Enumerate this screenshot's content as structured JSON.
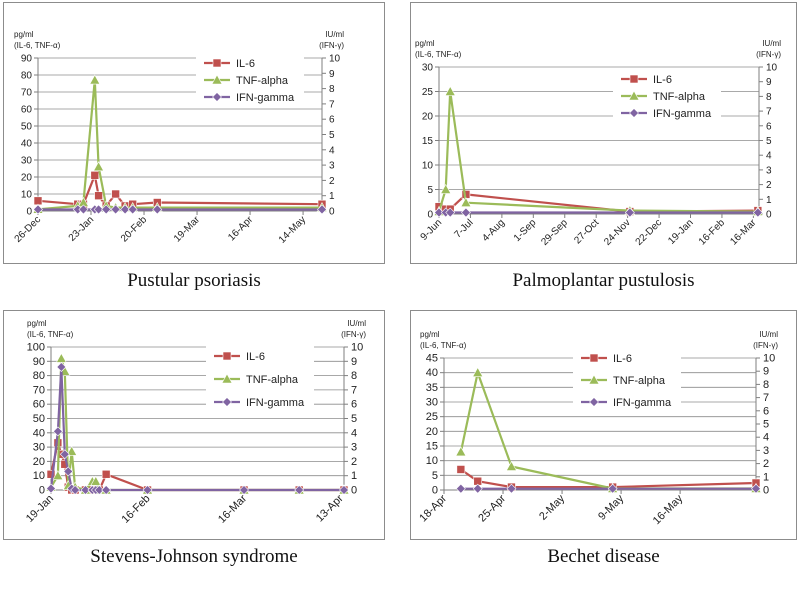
{
  "colors": {
    "IL-6": "#c0504d",
    "TNF-alpha": "#9bbb59",
    "IFN-gamma": "#8064a2",
    "axis": "#7f7f7f",
    "grid": "#8c8c8c"
  },
  "chart_data": [
    {
      "type": "line",
      "caption": "Pustular psoriasis",
      "left_unit": "pg/ml",
      "left_subunit": "(IL-6, TNF-α)",
      "right_unit": "IU/ml",
      "right_subunit": "(IFN-γ)",
      "ylim": [
        0,
        90
      ],
      "y_ticks": [
        0,
        10,
        20,
        30,
        40,
        50,
        60,
        70,
        80,
        90
      ],
      "y2lim": [
        0,
        10
      ],
      "y2_ticks": [
        0,
        1,
        2,
        3,
        4,
        5,
        6,
        7,
        8,
        9,
        10
      ],
      "xlim": [
        0,
        150
      ],
      "x_ticks": [
        {
          "x": 0,
          "label": "26-Dec"
        },
        {
          "x": 28,
          "label": "23-Jan"
        },
        {
          "x": 56,
          "label": "20-Feb"
        },
        {
          "x": 84,
          "label": "19-Mar"
        },
        {
          "x": 112,
          "label": "16-Apr"
        },
        {
          "x": 140,
          "label": "14-May"
        }
      ],
      "series": [
        {
          "name": "IL-6",
          "axis": "left",
          "marker": "square",
          "x": [
            0,
            21,
            24,
            30,
            32,
            36,
            41,
            46,
            50,
            63,
            150
          ],
          "y": [
            6,
            4,
            4,
            21,
            9,
            3,
            10,
            3,
            4,
            5,
            4
          ]
        },
        {
          "name": "TNF-alpha",
          "axis": "left",
          "marker": "triangle",
          "x": [
            0,
            21,
            24,
            30,
            32,
            36,
            41,
            46,
            50,
            63,
            150
          ],
          "y": [
            1,
            3,
            5,
            77,
            26,
            3,
            2,
            2,
            2,
            2,
            2
          ]
        },
        {
          "name": "IFN-gamma",
          "axis": "right",
          "marker": "diamond",
          "x": [
            0,
            21,
            24,
            30,
            32,
            36,
            41,
            46,
            50,
            63,
            150
          ],
          "y": [
            0.1,
            0.1,
            0.1,
            0.1,
            0.1,
            0.1,
            0.1,
            0.1,
            0.1,
            0.1,
            0.1
          ]
        }
      ]
    },
    {
      "type": "line",
      "caption": "Palmoplantar pustulosis",
      "left_unit": "pg/ml",
      "left_subunit": "(IL-6, TNF-α)",
      "right_unit": "IU/ml",
      "right_subunit": "(IFN-γ)",
      "ylim": [
        0,
        30
      ],
      "y_ticks": [
        0,
        5,
        10,
        15,
        20,
        25,
        30
      ],
      "y2lim": [
        0,
        10
      ],
      "y2_ticks": [
        0,
        1,
        2,
        3,
        4,
        5,
        6,
        7,
        8,
        9,
        10
      ],
      "xlim": [
        0,
        285
      ],
      "x_ticks": [
        {
          "x": 0,
          "label": "9-Jun"
        },
        {
          "x": 28,
          "label": "7-Jul"
        },
        {
          "x": 56,
          "label": "4-Aug"
        },
        {
          "x": 84,
          "label": "1-Sep"
        },
        {
          "x": 112,
          "label": "29-Sep"
        },
        {
          "x": 140,
          "label": "27-Oct"
        },
        {
          "x": 168,
          "label": "24-Nov"
        },
        {
          "x": 196,
          "label": "22-Dec"
        },
        {
          "x": 224,
          "label": "19-Jan"
        },
        {
          "x": 252,
          "label": "16-Feb"
        },
        {
          "x": 280,
          "label": "16-Mar"
        }
      ],
      "series": [
        {
          "name": "IL-6",
          "axis": "left",
          "marker": "square",
          "x": [
            0,
            6,
            10,
            24,
            170,
            284
          ],
          "y": [
            1.5,
            1,
            1,
            4,
            0.5,
            0.7
          ]
        },
        {
          "name": "TNF-alpha",
          "axis": "left",
          "marker": "triangle",
          "x": [
            0,
            6,
            10,
            24,
            170,
            284
          ],
          "y": [
            0.5,
            5,
            25,
            2.3,
            0.7,
            0.5
          ]
        },
        {
          "name": "IFN-gamma",
          "axis": "right",
          "marker": "diamond",
          "x": [
            0,
            6,
            10,
            24,
            170,
            284
          ],
          "y": [
            0.1,
            0.1,
            0.1,
            0.1,
            0.1,
            0.1
          ]
        }
      ]
    },
    {
      "type": "line",
      "caption": "Stevens-Johnson syndrome",
      "left_unit": "pg/ml",
      "left_subunit": "(IL-6, TNF-α)",
      "right_unit": "IU/ml",
      "right_subunit": "(IFN-γ)",
      "ylim": [
        0,
        100
      ],
      "y_ticks": [
        0,
        10,
        20,
        30,
        40,
        50,
        60,
        70,
        80,
        90,
        100
      ],
      "y2lim": [
        0,
        10
      ],
      "y2_ticks": [
        0,
        1,
        2,
        3,
        4,
        5,
        6,
        7,
        8,
        9,
        10
      ],
      "xlim": [
        0,
        85
      ],
      "x_ticks": [
        {
          "x": 0,
          "label": "19-Jan"
        },
        {
          "x": 28,
          "label": "16-Feb"
        },
        {
          "x": 56,
          "label": "16-Mar"
        },
        {
          "x": 84,
          "label": "13-Apr"
        }
      ],
      "series": [
        {
          "name": "IL-6",
          "axis": "left",
          "marker": "square",
          "x": [
            0,
            2,
            3,
            4,
            5,
            6,
            7,
            10,
            12,
            13,
            14,
            16,
            28,
            56,
            72,
            85
          ],
          "y": [
            11,
            33,
            25,
            18,
            2,
            0,
            0,
            0,
            0,
            0,
            0,
            11,
            0,
            0,
            0,
            0
          ]
        },
        {
          "name": "TNF-alpha",
          "axis": "left",
          "marker": "triangle",
          "x": [
            0,
            2,
            3,
            4,
            5,
            6,
            7,
            10,
            12,
            13,
            14,
            16,
            28,
            56,
            72,
            85
          ],
          "y": [
            2,
            10,
            92,
            83,
            3,
            27,
            2,
            0,
            6,
            6,
            0,
            0,
            0,
            0,
            0,
            0
          ]
        },
        {
          "name": "IFN-gamma",
          "axis": "right",
          "marker": "diamond",
          "x": [
            0,
            2,
            3,
            4,
            5,
            6,
            7,
            10,
            12,
            13,
            14,
            16,
            28,
            56,
            72,
            85
          ],
          "y": [
            0.1,
            4.1,
            8.6,
            2.5,
            1.3,
            0.1,
            0,
            0,
            0,
            0,
            0,
            0,
            0,
            0,
            0,
            0
          ]
        }
      ]
    },
    {
      "type": "line",
      "caption": "Bechet disease",
      "left_unit": "pg/ml",
      "left_subunit": "(IL-6, TNF-α)",
      "right_unit": "IU/ml",
      "right_subunit": "(IFN-γ)",
      "ylim": [
        0,
        45
      ],
      "y_ticks": [
        0,
        5,
        10,
        15,
        20,
        25,
        30,
        35,
        40,
        45
      ],
      "y2lim": [
        0,
        10
      ],
      "y2_ticks": [
        0,
        1,
        2,
        3,
        4,
        5,
        6,
        7,
        8,
        9,
        10
      ],
      "xlim": [
        0,
        37
      ],
      "x_ticks": [
        {
          "x": 0,
          "label": "18-Apr"
        },
        {
          "x": 7,
          "label": "25-Apr"
        },
        {
          "x": 14,
          "label": "2-May"
        },
        {
          "x": 21,
          "label": "9-May"
        },
        {
          "x": 28,
          "label": "16-May"
        }
      ],
      "series": [
        {
          "name": "IL-6",
          "axis": "left",
          "marker": "square",
          "x": [
            2,
            4,
            8,
            20,
            37
          ],
          "y": [
            7,
            3,
            1,
            1,
            2.4
          ]
        },
        {
          "name": "TNF-alpha",
          "axis": "left",
          "marker": "triangle",
          "x": [
            2,
            4,
            8,
            20,
            37
          ],
          "y": [
            13,
            40,
            8,
            0.5,
            0.5
          ]
        },
        {
          "name": "IFN-gamma",
          "axis": "right",
          "marker": "diamond",
          "x": [
            2,
            4,
            8,
            20,
            37
          ],
          "y": [
            0.1,
            0.1,
            0.1,
            0.1,
            0.1
          ]
        }
      ]
    }
  ]
}
